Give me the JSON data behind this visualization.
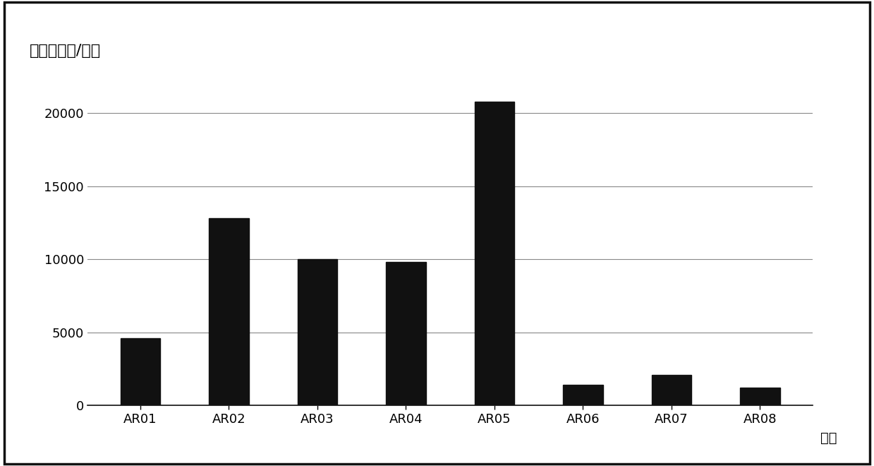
{
  "categories": [
    "AR01",
    "AR02",
    "AR03",
    "AR04",
    "AR05",
    "AR06",
    "AR07",
    "AR08"
  ],
  "values": [
    4600,
    12800,
    10000,
    9800,
    20800,
    1400,
    2100,
    1200
  ],
  "bar_color": "#111111",
  "ylabel": "航空器数量/架次",
  "xlabel": "扇区",
  "ylim": [
    0,
    22000
  ],
  "yticks": [
    0,
    5000,
    10000,
    15000,
    20000
  ],
  "background_color": "#ffffff",
  "bar_width": 0.45,
  "ylabel_fontsize": 16,
  "xlabel_fontsize": 14,
  "tick_fontsize": 13,
  "grid_color": "#888888",
  "grid_linewidth": 0.8,
  "border_color": "#111111",
  "border_linewidth": 2.5
}
